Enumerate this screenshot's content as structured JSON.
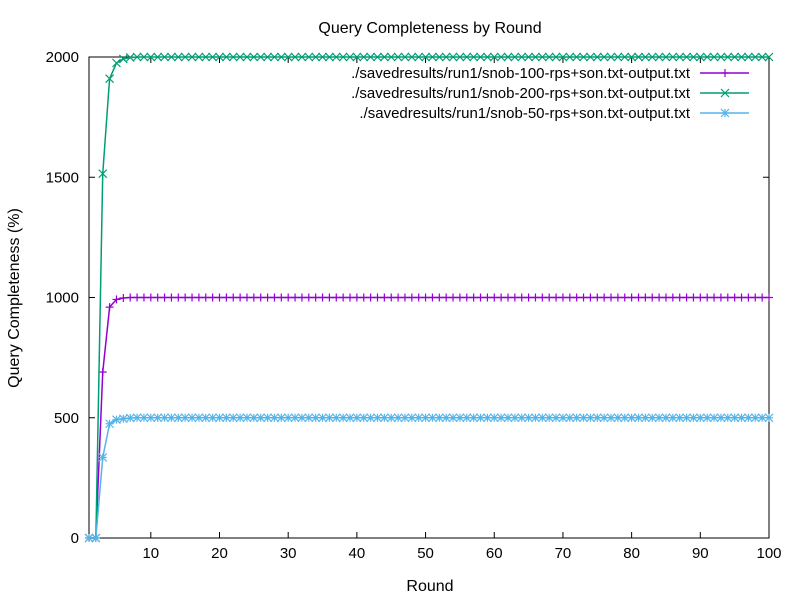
{
  "chart_data": {
    "type": "line",
    "title": "Query Completeness by Round",
    "xlabel": "Round",
    "ylabel": "Query Completeness (%)",
    "xlim": [
      1,
      100
    ],
    "ylim": [
      0,
      2000
    ],
    "x_ticks": [
      10,
      20,
      30,
      40,
      50,
      60,
      70,
      80,
      90,
      100
    ],
    "y_ticks": [
      0,
      500,
      1000,
      1500,
      2000
    ],
    "grid": false,
    "legend_position": "top-right",
    "series": [
      {
        "name": "./savedresults/run1/snob-100-rps+son.txt-output.txt",
        "color": "#9400d3",
        "marker": "plus",
        "initial_values": [
          0,
          0,
          690,
          960,
          992,
          998
        ],
        "plateau": 1000
      },
      {
        "name": "./savedresults/run1/snob-200-rps+son.txt-output.txt",
        "color": "#009e73",
        "marker": "cross",
        "initial_values": [
          0,
          0,
          1515,
          1910,
          1975,
          1992,
          1998
        ],
        "plateau": 2000
      },
      {
        "name": "./savedresults/run1/snob-50-rps+son.txt-output.txt",
        "color": "#56b4e9",
        "marker": "star",
        "initial_values": [
          0,
          0,
          335,
          475,
          492,
          496,
          499
        ],
        "plateau": 500
      }
    ]
  }
}
